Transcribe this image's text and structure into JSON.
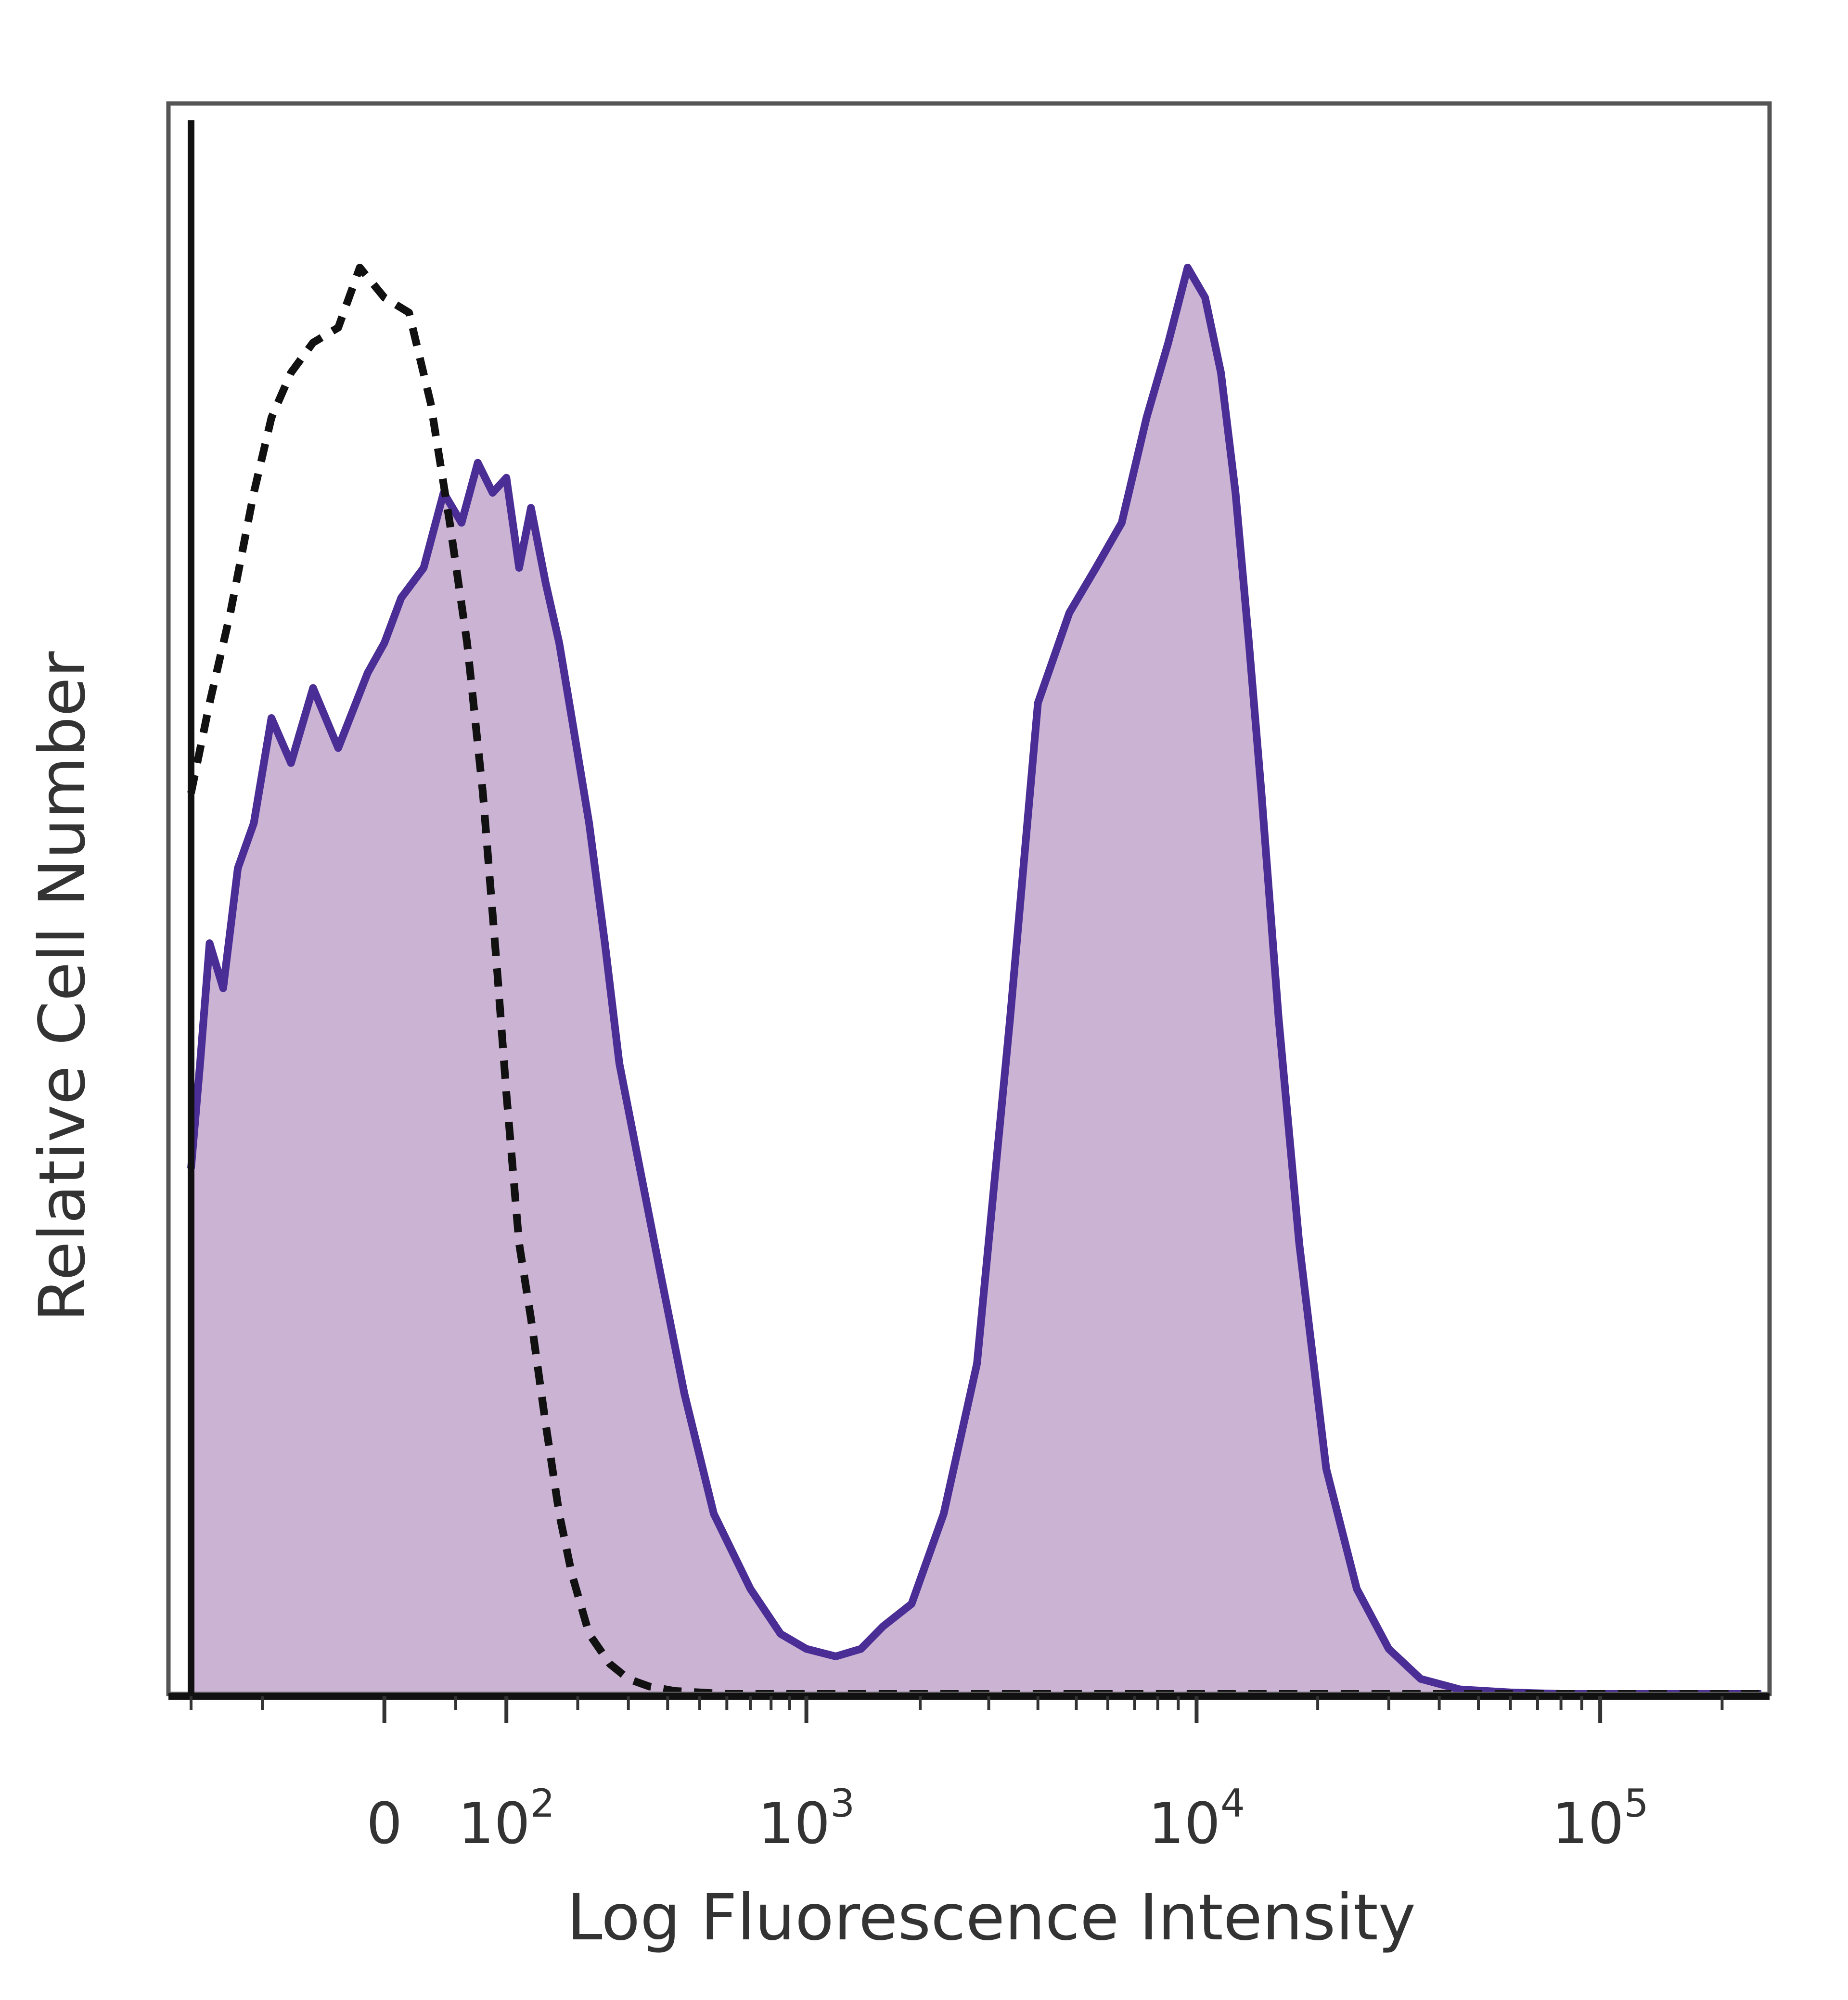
{
  "chart_data": {
    "type": "area",
    "xlabel": "Log Fluorescence Intensity",
    "ylabel": "Relative Cell Number",
    "x_scale": "biexponential",
    "x_ticks": [
      {
        "value": 0,
        "label": "0"
      },
      {
        "value": 100,
        "label": "10",
        "sup": "2"
      },
      {
        "value": 1000,
        "label": "10",
        "sup": "3"
      },
      {
        "value": 10000,
        "label": "10",
        "sup": "4"
      },
      {
        "value": 100000,
        "label": "10",
        "sup": "5"
      }
    ],
    "xlim": [
      -200,
      250000
    ],
    "ylim": [
      0,
      100
    ],
    "grid": false,
    "colors": {
      "stained_fill": "#cbb3d4",
      "stained_line": "#4b2d96",
      "control_line": "#111111",
      "frame": "#555555"
    },
    "series": [
      {
        "style": "filled-solid",
        "x": [
          -200,
          -185,
          -170,
          -150,
          -130,
          -110,
          -90,
          -70,
          -50,
          -30,
          -10,
          0,
          10,
          25,
          40,
          55,
          70,
          85,
          100,
          115,
          130,
          150,
          170,
          190,
          220,
          250,
          280,
          320,
          380,
          450,
          550,
          700,
          850,
          1000,
          1200,
          1400,
          1600,
          1900,
          2300,
          2800,
          3400,
          4000,
          4800,
          5600,
          6500,
          7500,
          8500,
          9500,
          10500,
          11500,
          12500,
          13500,
          14500,
          16000,
          18000,
          21000,
          25000,
          30000,
          36000,
          45000,
          60000,
          80000,
          110000,
          250000
        ],
        "y": [
          35,
          42,
          50,
          47,
          55,
          58,
          65,
          62,
          67,
          63,
          68,
          70,
          73,
          75,
          80,
          78,
          82,
          80,
          81,
          75,
          79,
          74,
          70,
          65,
          58,
          50,
          42,
          36,
          28,
          20,
          12,
          7,
          4,
          3,
          2.5,
          3,
          4.5,
          6,
          12,
          22,
          45,
          66,
          72,
          75,
          78,
          85,
          90,
          95,
          93,
          88,
          80,
          70,
          60,
          45,
          30,
          15,
          7,
          3,
          1,
          0.3,
          0.1,
          0,
          0,
          0
        ]
      },
      {
        "style": "dashed",
        "x": [
          -200,
          -170,
          -140,
          -110,
          -90,
          -70,
          -50,
          -30,
          -15,
          0,
          15,
          30,
          45,
          60,
          75,
          90,
          100,
          115,
          130,
          150,
          170,
          190,
          220,
          260,
          300,
          350,
          420,
          500,
          600,
          800,
          1000,
          1500,
          3000,
          10000,
          250000
        ],
        "y": [
          60,
          66,
          72,
          80,
          85,
          88,
          90,
          91,
          95,
          93,
          92,
          86,
          78,
          70,
          60,
          48,
          40,
          30,
          25,
          18,
          12,
          8,
          4,
          2,
          1,
          0.5,
          0.2,
          0.1,
          0,
          0,
          0,
          0,
          0,
          0,
          0
        ]
      }
    ]
  }
}
